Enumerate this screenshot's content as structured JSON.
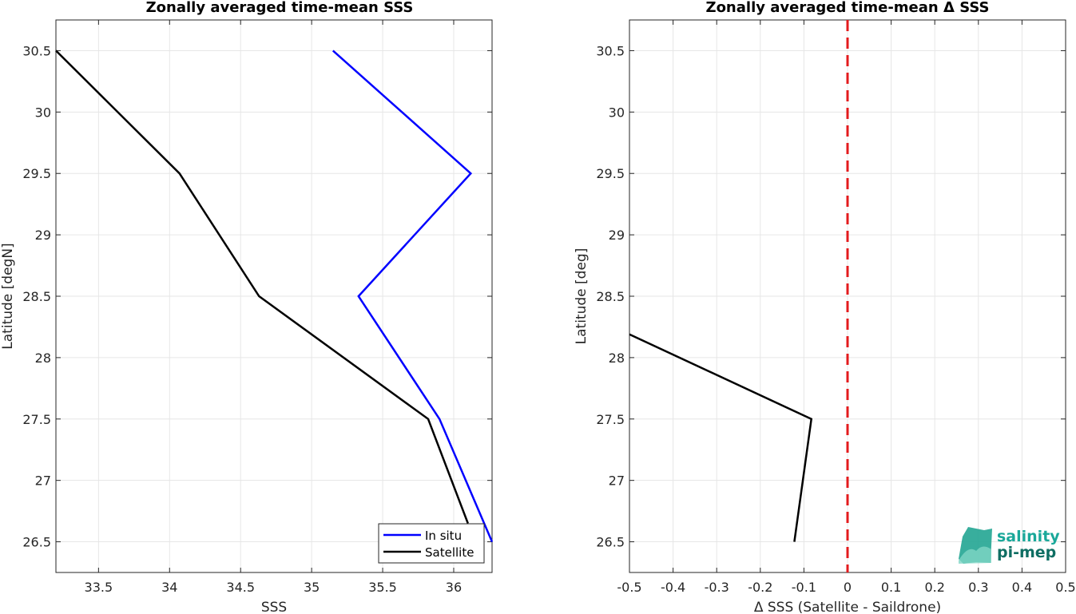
{
  "chart_data": [
    {
      "type": "line",
      "title": "Zonally averaged time-mean SSS",
      "xlabel": "SSS",
      "ylabel": "Latitude [degN]",
      "xlim": [
        33.2,
        36.27
      ],
      "ylim": [
        26.25,
        30.75
      ],
      "x_ticks": [
        "33.5",
        "34",
        "34.5",
        "35",
        "35.5",
        "36"
      ],
      "y_ticks": [
        "26.5",
        "27",
        "27.5",
        "28",
        "28.5",
        "29",
        "29.5",
        "30",
        "30.5"
      ],
      "grid": true,
      "legend_position": "bottom-right",
      "series": [
        {
          "name": "In situ",
          "color": "#0000ff",
          "x": [
            35.15,
            36.12,
            35.33,
            35.9,
            36.27
          ],
          "y": [
            30.5,
            29.5,
            28.5,
            27.5,
            26.5
          ]
        },
        {
          "name": "Satellite",
          "color": "#000000",
          "x": [
            33.2,
            34.07,
            34.63,
            35.82,
            36.1
          ],
          "y": [
            30.5,
            29.5,
            28.5,
            27.5,
            26.65
          ]
        }
      ]
    },
    {
      "type": "line",
      "title": "Zonally averaged time-mean Δ SSS",
      "xlabel": "Δ SSS (Satellite - Saildrone)",
      "ylabel": "Latitude [deg]",
      "xlim": [
        -0.5,
        0.5
      ],
      "ylim": [
        26.25,
        30.75
      ],
      "x_ticks": [
        "-0.5",
        "-0.4",
        "-0.3",
        "-0.2",
        "-0.1",
        "0",
        "0.1",
        "0.2",
        "0.3",
        "0.4",
        "0.5"
      ],
      "y_ticks": [
        "26.5",
        "27",
        "27.5",
        "28",
        "28.5",
        "29",
        "29.5",
        "30",
        "30.5"
      ],
      "grid": true,
      "reference_line": {
        "x": 0,
        "color": "#e31a1c",
        "style": "dashed"
      },
      "series": [
        {
          "color": "#000000",
          "x": [
            -0.5,
            -0.083,
            -0.122
          ],
          "y": [
            28.19,
            27.5,
            26.5
          ]
        }
      ]
    }
  ],
  "logo": {
    "line1": "salinity",
    "line2": "pi-mep",
    "color1": "#1aa89a",
    "color2": "#0f6e63"
  }
}
